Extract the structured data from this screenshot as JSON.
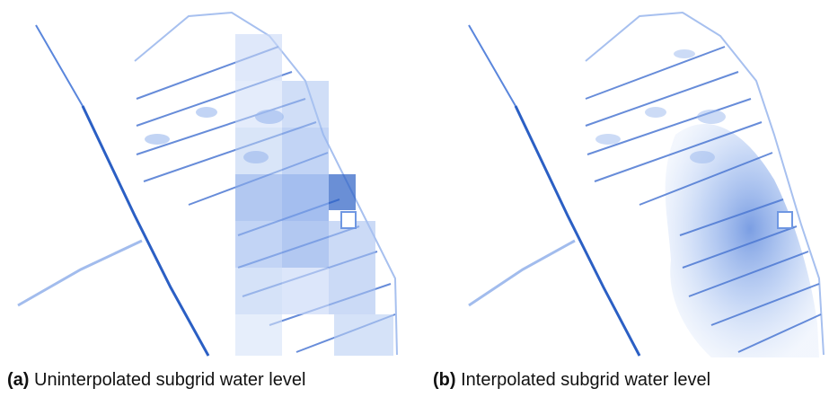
{
  "figure": {
    "panels": [
      {
        "tag": "(a)",
        "caption": " Uninterpolated subgrid water level"
      },
      {
        "tag": "(b)",
        "caption": " Interpolated subgrid water level"
      }
    ]
  },
  "colors": {
    "water_dark": "#2b5fc4",
    "water_mid": "#6f97e2",
    "water_light": "#c9d9f7",
    "background": "#ffffff"
  }
}
